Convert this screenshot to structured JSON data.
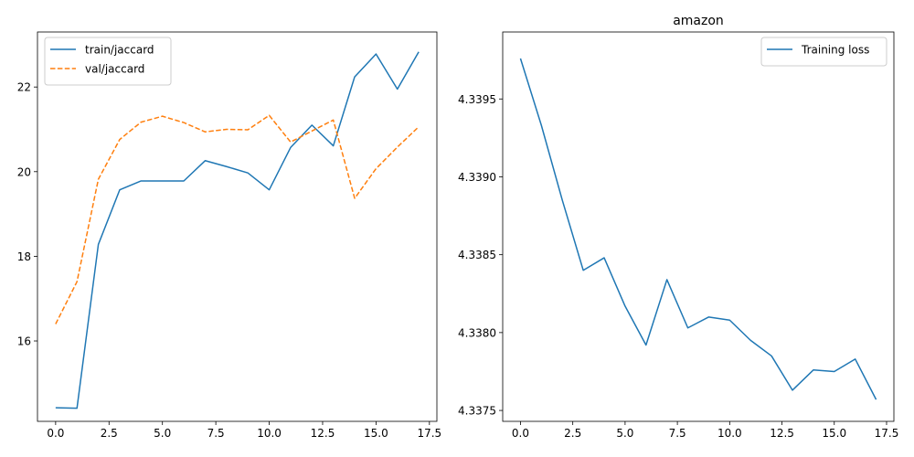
{
  "chart_data": [
    {
      "type": "line",
      "title": "",
      "xlabel": "",
      "ylabel": "",
      "xlim": [
        -0.85,
        17.85
      ],
      "ylim": [
        14.1,
        23.3
      ],
      "xticks": [
        0.0,
        2.5,
        5.0,
        7.5,
        10.0,
        12.5,
        15.0,
        17.5
      ],
      "xtick_labels": [
        "0.0",
        "2.5",
        "5.0",
        "7.5",
        "10.0",
        "12.5",
        "15.0",
        "17.5"
      ],
      "yticks": [
        16,
        18,
        20,
        22
      ],
      "ytick_labels": [
        "16",
        "18",
        "20",
        "22"
      ],
      "legend": "top-left",
      "grid": false,
      "x": [
        0,
        1,
        2,
        3,
        4,
        5,
        6,
        7,
        8,
        9,
        10,
        11,
        12,
        13,
        14,
        15,
        16,
        17
      ],
      "series": [
        {
          "name": "train/jaccard",
          "color": "#1f77b4",
          "dash": "solid",
          "values": [
            14.42,
            14.41,
            18.28,
            19.57,
            19.78,
            19.78,
            19.78,
            20.26,
            20.12,
            19.97,
            19.57,
            20.57,
            21.1,
            20.61,
            22.24,
            22.78,
            21.95,
            22.83
          ]
        },
        {
          "name": "val/jaccard",
          "color": "#ff7f0e",
          "dash": "dashed",
          "values": [
            16.4,
            17.4,
            19.82,
            20.76,
            21.17,
            21.31,
            21.16,
            20.94,
            21.0,
            20.99,
            21.33,
            20.7,
            20.96,
            21.22,
            19.37,
            20.07,
            20.58,
            21.06
          ]
        }
      ]
    },
    {
      "type": "line",
      "title": "amazon",
      "xlabel": "",
      "ylabel": "",
      "xlim": [
        -0.85,
        17.85
      ],
      "ylim": [
        4.33743,
        4.33993
      ],
      "xticks": [
        0.0,
        2.5,
        5.0,
        7.5,
        10.0,
        12.5,
        15.0,
        17.5
      ],
      "xtick_labels": [
        "0.0",
        "2.5",
        "5.0",
        "7.5",
        "10.0",
        "12.5",
        "15.0",
        "17.5"
      ],
      "yticks": [
        4.3375,
        4.338,
        4.3385,
        4.339,
        4.3395
      ],
      "ytick_labels": [
        "4.3375",
        "4.3380",
        "4.3385",
        "4.3390",
        "4.3395"
      ],
      "legend": "top-right",
      "grid": false,
      "x": [
        0,
        1,
        2,
        3,
        4,
        5,
        6,
        7,
        8,
        9,
        10,
        11,
        12,
        13,
        14,
        15,
        16,
        17
      ],
      "series": [
        {
          "name": "Training loss",
          "color": "#1f77b4",
          "dash": "solid",
          "values": [
            4.33976,
            4.33933,
            4.33885,
            4.3384,
            4.33848,
            4.33817,
            4.33792,
            4.33834,
            4.33803,
            4.3381,
            4.33808,
            4.33795,
            4.33785,
            4.33763,
            4.33776,
            4.33775,
            4.33783,
            4.33757
          ]
        }
      ]
    }
  ]
}
